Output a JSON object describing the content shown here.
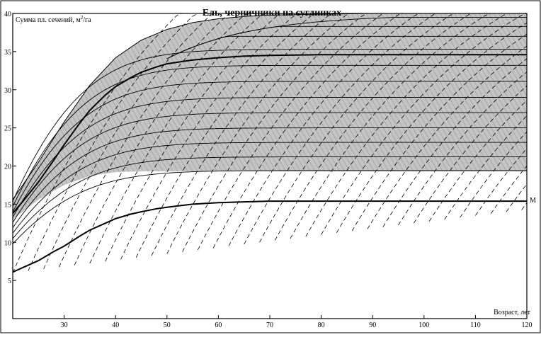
{
  "chart_data": {
    "type": "line",
    "title": "Ель, черничники на суглинках",
    "xlabel": "Возраст, лет",
    "ylabel_prefix": "Сумма пл. сечений, м",
    "ylabel_sup": "2",
    "ylabel_suffix": "/га",
    "xlim": [
      20,
      120
    ],
    "ylim": [
      0,
      40
    ],
    "x_ticks": [
      30,
      40,
      50,
      60,
      70,
      80,
      90,
      100,
      110,
      120
    ],
    "y_ticks": [
      5,
      10,
      15,
      20,
      25,
      30,
      35,
      40
    ],
    "x_tick_labels": [
      "30",
      "40",
      "50",
      "60",
      "70",
      "80",
      "90",
      "100",
      "110",
      "120"
    ],
    "y_tick_labels": [
      "5",
      "10",
      "15",
      "20",
      "25",
      "30",
      "35",
      "40"
    ],
    "shaded_band": {
      "x": [
        20,
        25,
        30,
        35,
        40,
        45,
        50,
        55,
        60,
        65,
        70,
        80,
        90,
        100,
        110,
        120
      ],
      "upper": [
        15.6,
        20.5,
        25.8,
        30.6,
        34.2,
        36.5,
        37.9,
        38.8,
        39.3,
        39.6,
        39.8,
        39.9,
        40,
        40,
        40,
        40
      ],
      "lower": [
        13.0,
        15.6,
        17.5,
        18.7,
        19.2,
        19.3,
        19.3,
        19.3,
        19.3,
        19.3,
        19.3,
        19.3,
        19.3,
        19.3,
        19.3,
        19.3
      ]
    },
    "series": [
      {
        "role": "upper-bold",
        "x": [
          20,
          22,
          25,
          28,
          30,
          33,
          35,
          38,
          40,
          43,
          45,
          48,
          50,
          55,
          60,
          65,
          70,
          80,
          90,
          100,
          110,
          120
        ],
        "values": [
          13.8,
          15.4,
          17.9,
          20.8,
          22.8,
          25.6,
          27.3,
          29.3,
          30.4,
          31.6,
          32.3,
          33.0,
          33.4,
          33.9,
          34.2,
          34.4,
          34.5,
          34.6,
          34.6,
          34.6,
          34.6,
          34.6
        ],
        "width": 2
      },
      {
        "role": "minimum",
        "name": "M",
        "x": [
          20,
          22,
          25,
          28,
          30,
          33,
          35,
          38,
          40,
          43,
          45,
          48,
          50,
          55,
          60,
          65,
          70,
          80,
          90,
          100,
          110,
          120
        ],
        "values": [
          6.1,
          6.7,
          7.6,
          8.8,
          9.5,
          10.8,
          11.6,
          12.5,
          13.1,
          13.7,
          14.0,
          14.4,
          14.6,
          15.0,
          15.2,
          15.3,
          15.4,
          15.4,
          15.4,
          15.4,
          15.4,
          15.4
        ],
        "width": 2
      }
    ],
    "thin_curves": {
      "start_y": [
        9.8,
        10.5,
        11.2,
        11.9,
        12.6,
        13.3,
        14.0,
        14.7,
        15.4
      ],
      "asymptote": [
        19.4,
        21.2,
        23.1,
        25.0,
        27.0,
        29.0,
        31.1,
        33.2,
        35.3
      ],
      "rate": 0.075
    },
    "extra_asymptotes": [
      37.0,
      38.3,
      39.5
    ],
    "dashed_curves": {
      "count": 34,
      "slope_start": 1.55,
      "slope_decay": 0.012
    },
    "line_label": "М",
    "grid": false,
    "legend": "none"
  }
}
